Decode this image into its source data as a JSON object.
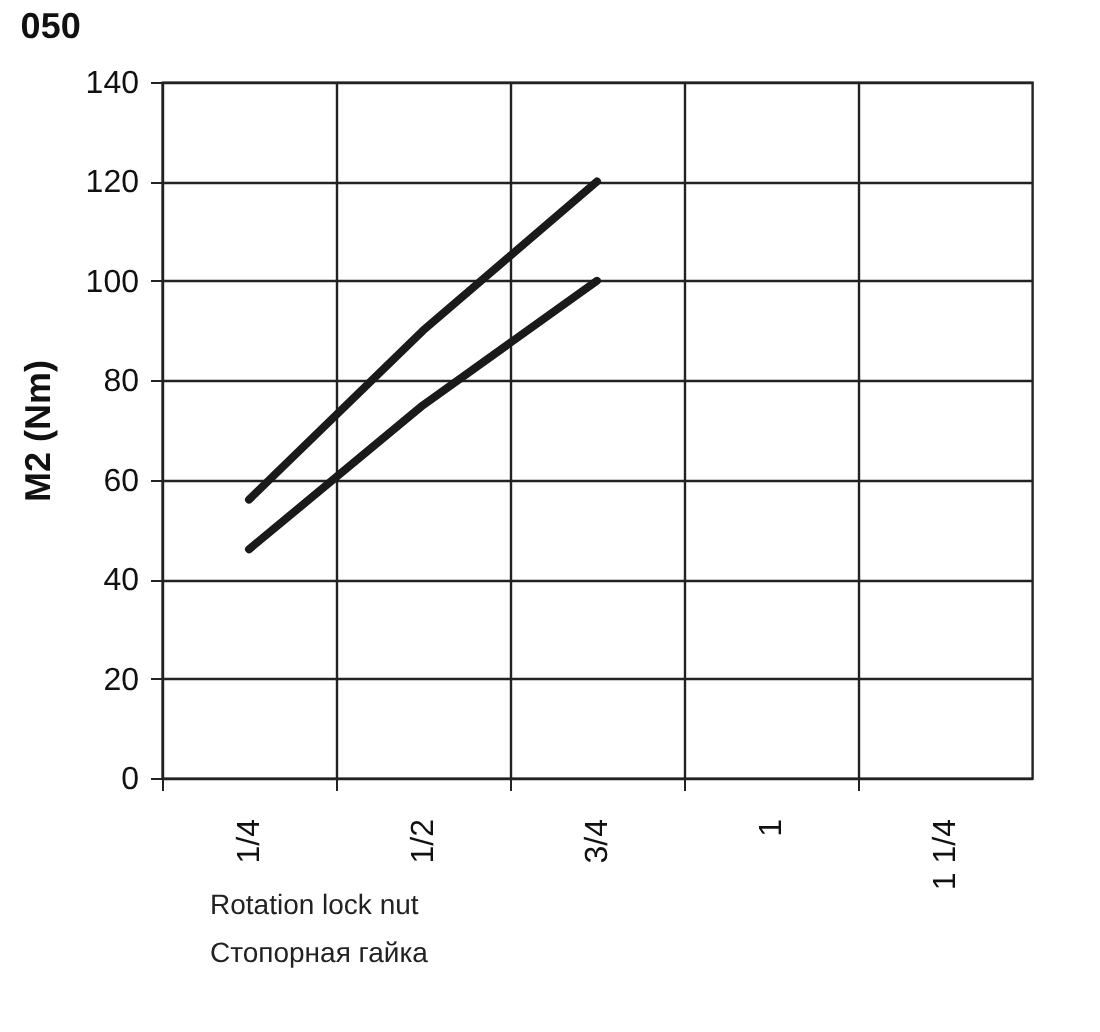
{
  "chart_data": {
    "type": "line",
    "title": "050",
    "ylabel": "M2 (Nm)",
    "categories": [
      "1/4",
      "1/2",
      "3/4",
      "1",
      "1 1/4"
    ],
    "series": [
      {
        "color": "#1a1a1a",
        "values": [
          56,
          90,
          120,
          null,
          null
        ]
      },
      {
        "color": "#1a1a1a",
        "values": [
          46,
          75,
          100,
          null,
          null
        ]
      }
    ],
    "ylim": [
      0,
      140
    ],
    "yticks": [
      0,
      20,
      40,
      60,
      80,
      100,
      120,
      140
    ],
    "grid": true,
    "legend": false,
    "marker": "none",
    "line_style": "solid",
    "annotations": [
      "Rotation lock nut",
      "Стопорная гайка"
    ]
  }
}
